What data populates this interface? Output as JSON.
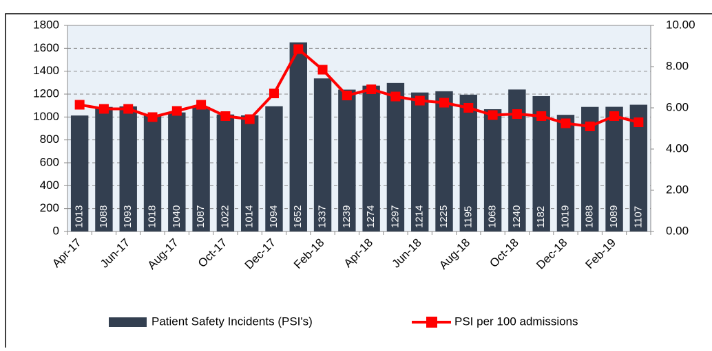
{
  "chart_data": {
    "type": "bar_line",
    "categories": [
      "Apr-17",
      null,
      "Jun-17",
      null,
      "Aug-17",
      null,
      "Oct-17",
      null,
      "Dec-17",
      null,
      "Feb-18",
      null,
      "Apr-18",
      null,
      "Jun-18",
      null,
      "Aug-18",
      null,
      "Oct-18",
      null,
      "Dec-18",
      null,
      "Feb-19",
      null
    ],
    "series": [
      {
        "name": "Patient Safety Incidents (PSI's)",
        "color": "#333f50",
        "type": "bar",
        "values": [
          1013,
          1088,
          1093,
          1018,
          1040,
          1087,
          1022,
          1014,
          1094,
          1652,
          1337,
          1239,
          1274,
          1297,
          1214,
          1225,
          1195,
          1068,
          1240,
          1182,
          1019,
          1088,
          1089,
          1107
        ]
      },
      {
        "name": "PSI per 100 admissions",
        "color": "#ff0000",
        "type": "line",
        "axis": "y2",
        "values": [
          6.15,
          5.95,
          5.95,
          5.55,
          5.85,
          6.15,
          5.6,
          5.45,
          6.7,
          8.85,
          7.85,
          6.6,
          6.9,
          6.55,
          6.35,
          6.25,
          6.0,
          5.65,
          5.7,
          5.6,
          5.25,
          5.1,
          5.6,
          5.3
        ]
      }
    ],
    "ylim": [
      0,
      1800
    ],
    "yticks": [
      0,
      200,
      400,
      600,
      800,
      1000,
      1200,
      1400,
      1600,
      1800
    ],
    "y2lim": [
      0,
      10
    ],
    "y2ticks": [
      {
        "value": 0,
        "label": "0.00"
      },
      {
        "value": 2,
        "label": "2.00"
      },
      {
        "value": 4,
        "label": "4.00"
      },
      {
        "value": 6,
        "label": "6.00"
      },
      {
        "value": 8,
        "label": "8.00"
      },
      {
        "value": 10,
        "label": "10.00"
      }
    ],
    "grid": true,
    "legend": "bottom"
  }
}
